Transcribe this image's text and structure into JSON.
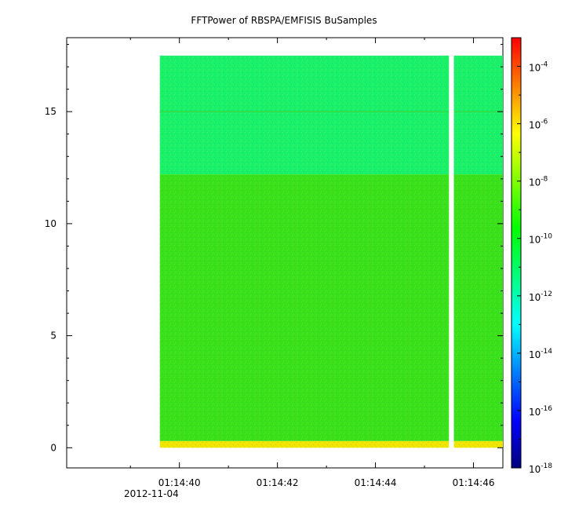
{
  "chart_data": {
    "type": "heatmap",
    "title": "FFTPower of RBSPA/EMFISIS  BuSamples",
    "xlabel": "",
    "ylabel": "",
    "date_label": "2012-11-04",
    "x_range": [
      "01:14:37.7",
      "01:14:46.6"
    ],
    "x_ticks": [
      "01:14:40",
      "01:14:42",
      "01:14:44",
      "01:14:46"
    ],
    "y_range": [
      -0.9,
      18.3
    ],
    "y_ticks": [
      0,
      5,
      10,
      15
    ],
    "data_extent": {
      "time_start": "01:14:39.6",
      "time_end": "01:14:46.6",
      "y_min": 0,
      "y_max": 17.5
    },
    "data_gap": {
      "time_start": "01:14:45.5",
      "time_end": "01:14:45.6"
    },
    "bands": [
      {
        "y_from": 0,
        "y_to": 0.3,
        "level": "1e-9",
        "color": "#f2e600"
      },
      {
        "y_from": 0.3,
        "y_to": 12.2,
        "level": "1e-10",
        "color": "#39e01c"
      },
      {
        "y_from": 12.2,
        "y_to": 17.5,
        "level": "1e-12",
        "color": "#19f06c"
      }
    ],
    "line_feature": {
      "y": 15.0,
      "color": "#2ee04a"
    },
    "colorbar": {
      "scale": "log",
      "range": [
        "1e-18",
        "1e-3"
      ],
      "colormap": [
        "#00007f",
        "#0000ff",
        "#007fff",
        "#00ffff",
        "#00ff7f",
        "#00ff00",
        "#7fff00",
        "#ffff00",
        "#ff7f00",
        "#ff0000"
      ],
      "tick_labels": [
        {
          "base": "10",
          "exp": "-4"
        },
        {
          "base": "10",
          "exp": "-6"
        },
        {
          "base": "10",
          "exp": "-8"
        },
        {
          "base": "10",
          "exp": "-10"
        },
        {
          "base": "10",
          "exp": "-12"
        },
        {
          "base": "10",
          "exp": "-14"
        },
        {
          "base": "10",
          "exp": "-16"
        },
        {
          "base": "10",
          "exp": "-18"
        }
      ]
    }
  }
}
